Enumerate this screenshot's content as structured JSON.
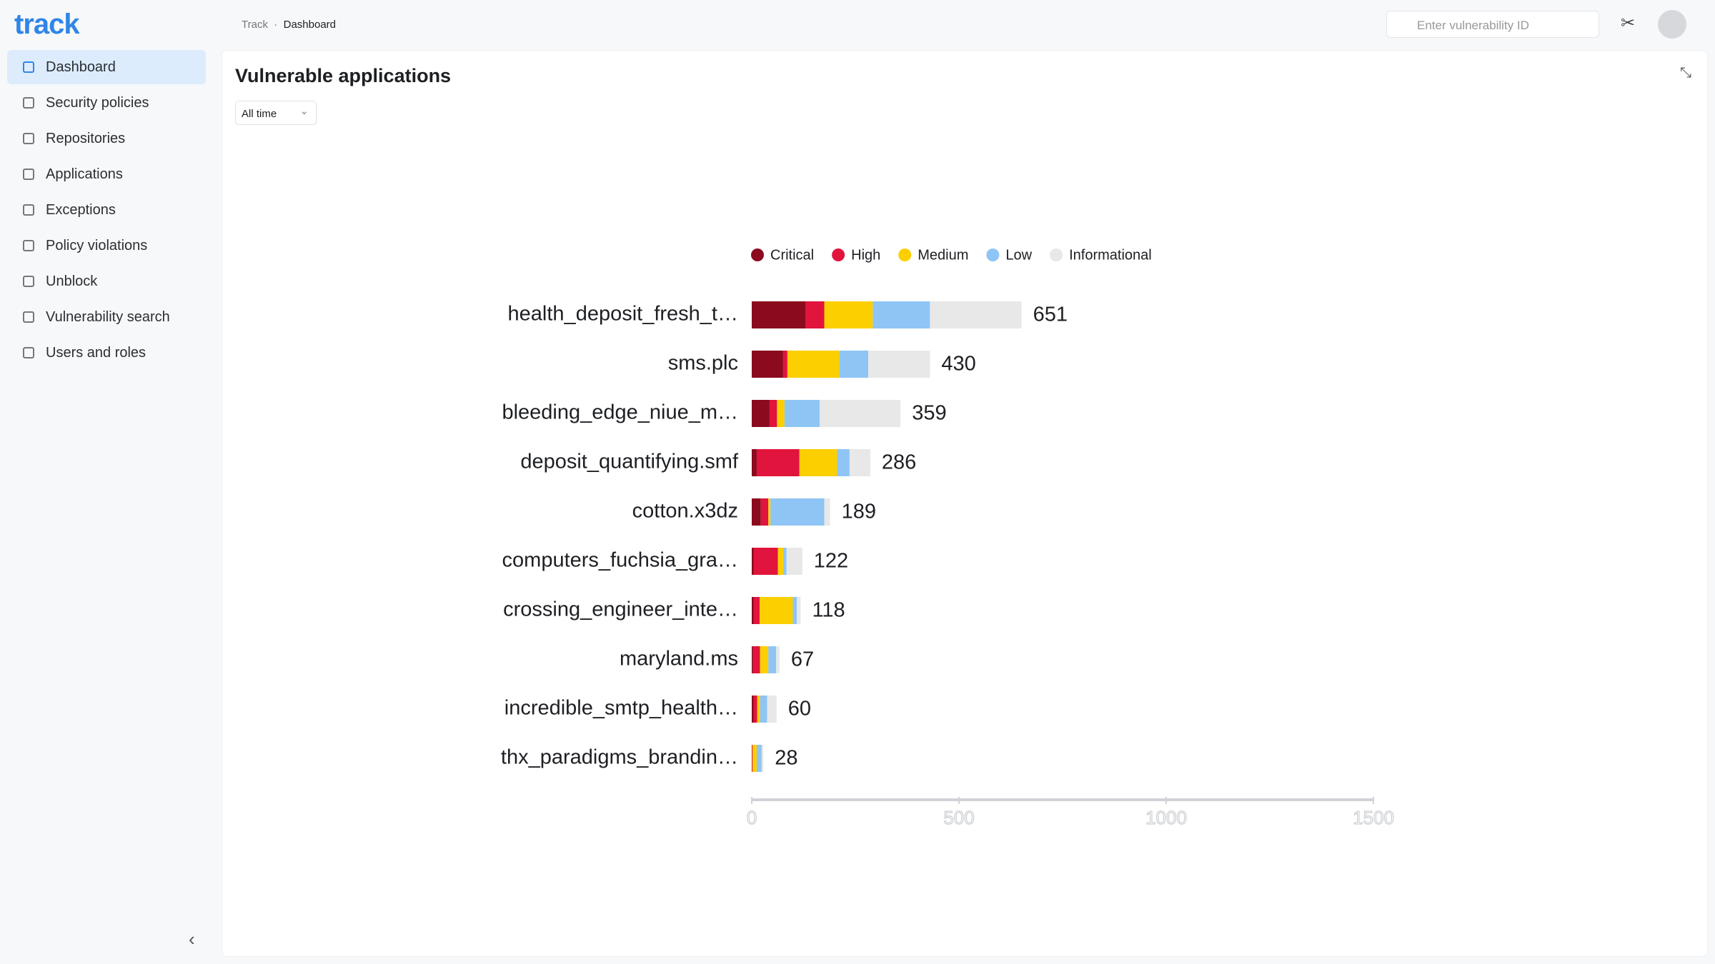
{
  "logo": "track",
  "nav": [
    "Dashboard",
    "Security policies",
    "Repositories",
    "Applications",
    "Exceptions",
    "Policy violations",
    "Unblock",
    "Vulnerability search",
    "Users and roles"
  ],
  "breadcrumb": [
    "Track",
    "Dashboard"
  ],
  "search_placeholder": "Enter vulnerability ID",
  "filter": "All time",
  "chart_data": {
    "type": "stacked-bar-horizontal",
    "title": "Vulnerable applications",
    "categories": [
      "health_deposit_fresh_t…",
      "sms.plc",
      "bleeding_edge_niue_m…",
      "deposit_quantifying.smf",
      "cotton.x3dz",
      "computers_fuchsia_gra…",
      "crossing_engineer_inte…",
      "maryland.ms",
      "incredible_smtp_health…",
      "thx_paradigms_brandin…"
    ],
    "series": [
      {
        "name": "Critical",
        "color": "#8b0a1e",
        "values": [
          130,
          75,
          43,
          12,
          22,
          5,
          5,
          3,
          5,
          0
        ]
      },
      {
        "name": "High",
        "color": "#e0143c",
        "values": [
          45,
          11,
          18,
          103,
          18,
          58,
          14,
          17,
          8,
          2
        ]
      },
      {
        "name": "Medium",
        "color": "#fccf00",
        "values": [
          117,
          125,
          18,
          91,
          5,
          13,
          80,
          20,
          7,
          10
        ]
      },
      {
        "name": "Low",
        "color": "#8ec5f5",
        "values": [
          138,
          70,
          85,
          30,
          130,
          8,
          10,
          19,
          17,
          12
        ]
      },
      {
        "name": "Informational",
        "color": "#e8e8e8",
        "values": [
          221,
          149,
          195,
          50,
          14,
          38,
          9,
          8,
          23,
          4
        ]
      }
    ],
    "totals": [
      651,
      430,
      359,
      286,
      189,
      122,
      118,
      67,
      60,
      28
    ],
    "xlim": [
      0,
      1500
    ],
    "xticks": [
      0,
      500,
      1000,
      1500
    ],
    "legend": "top"
  }
}
